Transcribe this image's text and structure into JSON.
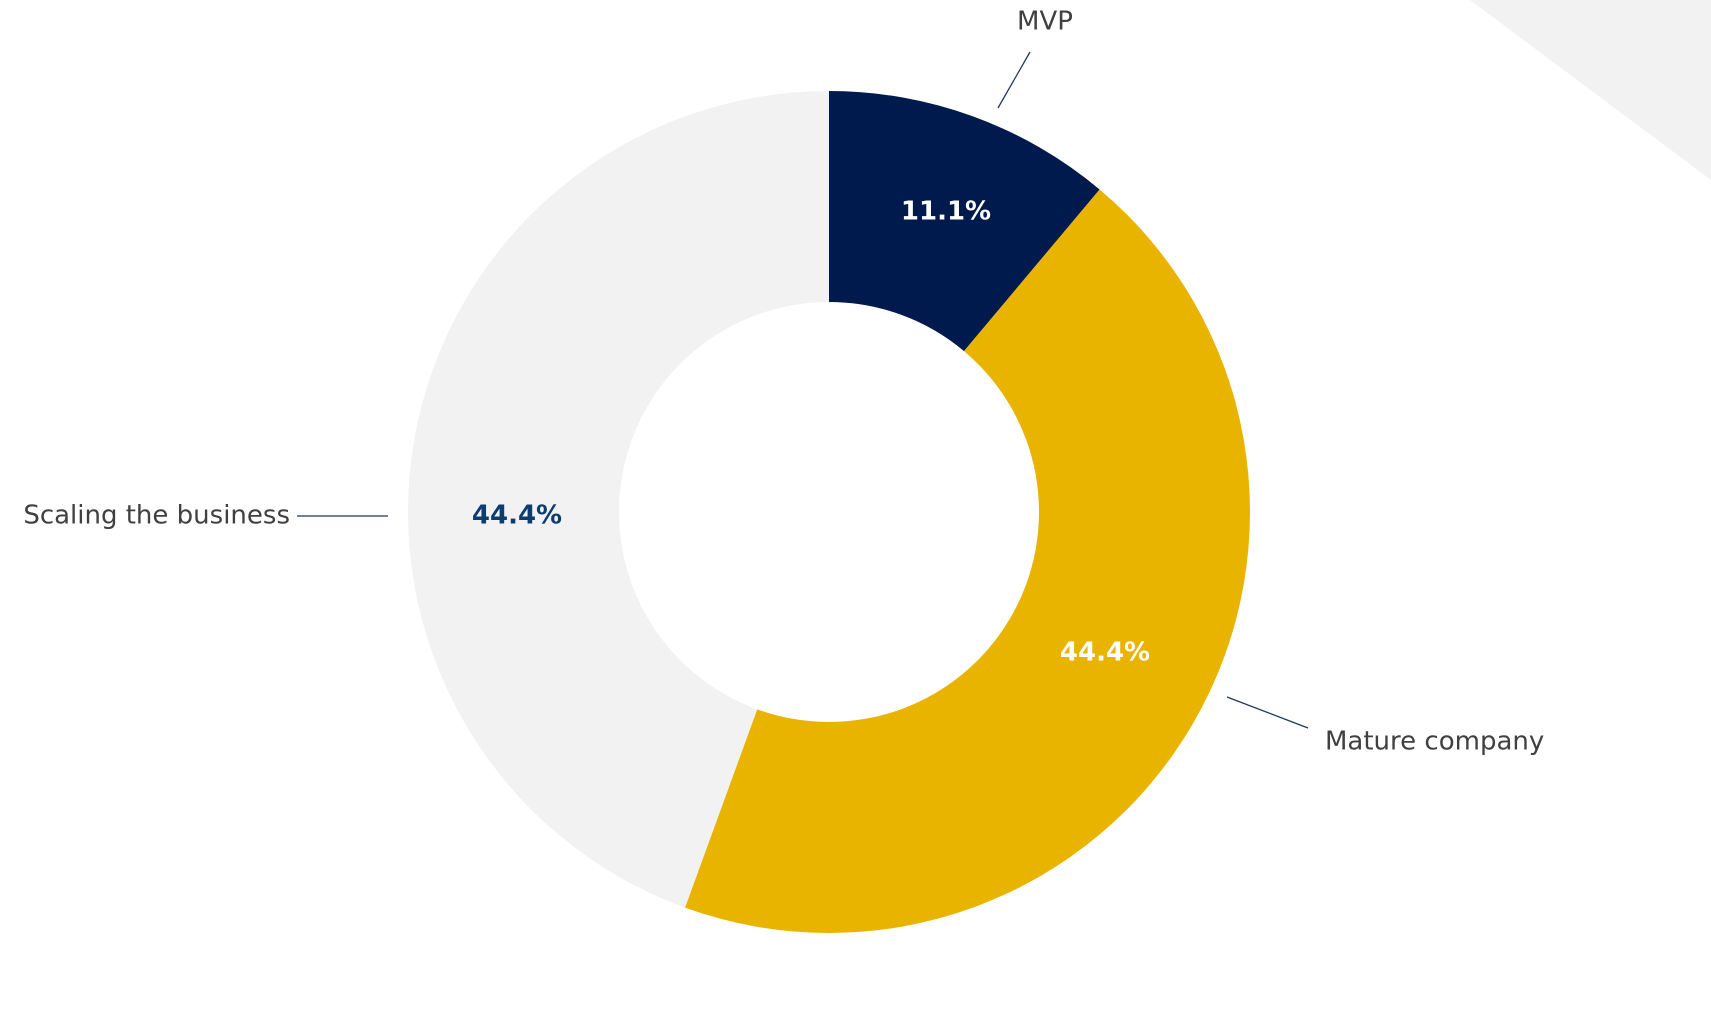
{
  "chart_data": {
    "type": "donut",
    "categories": [
      "MVP",
      "Mature company",
      "Scaling the business"
    ],
    "values": [
      11.1,
      44.4,
      44.4
    ],
    "value_labels": [
      "11.1%",
      "44.4%",
      "44.4%"
    ],
    "colors": [
      "#001a4d",
      "#e8b400",
      "#f2f2f2"
    ],
    "label_colors": [
      "#ffffff",
      "#ffffff",
      "#0d3c6e"
    ]
  }
}
